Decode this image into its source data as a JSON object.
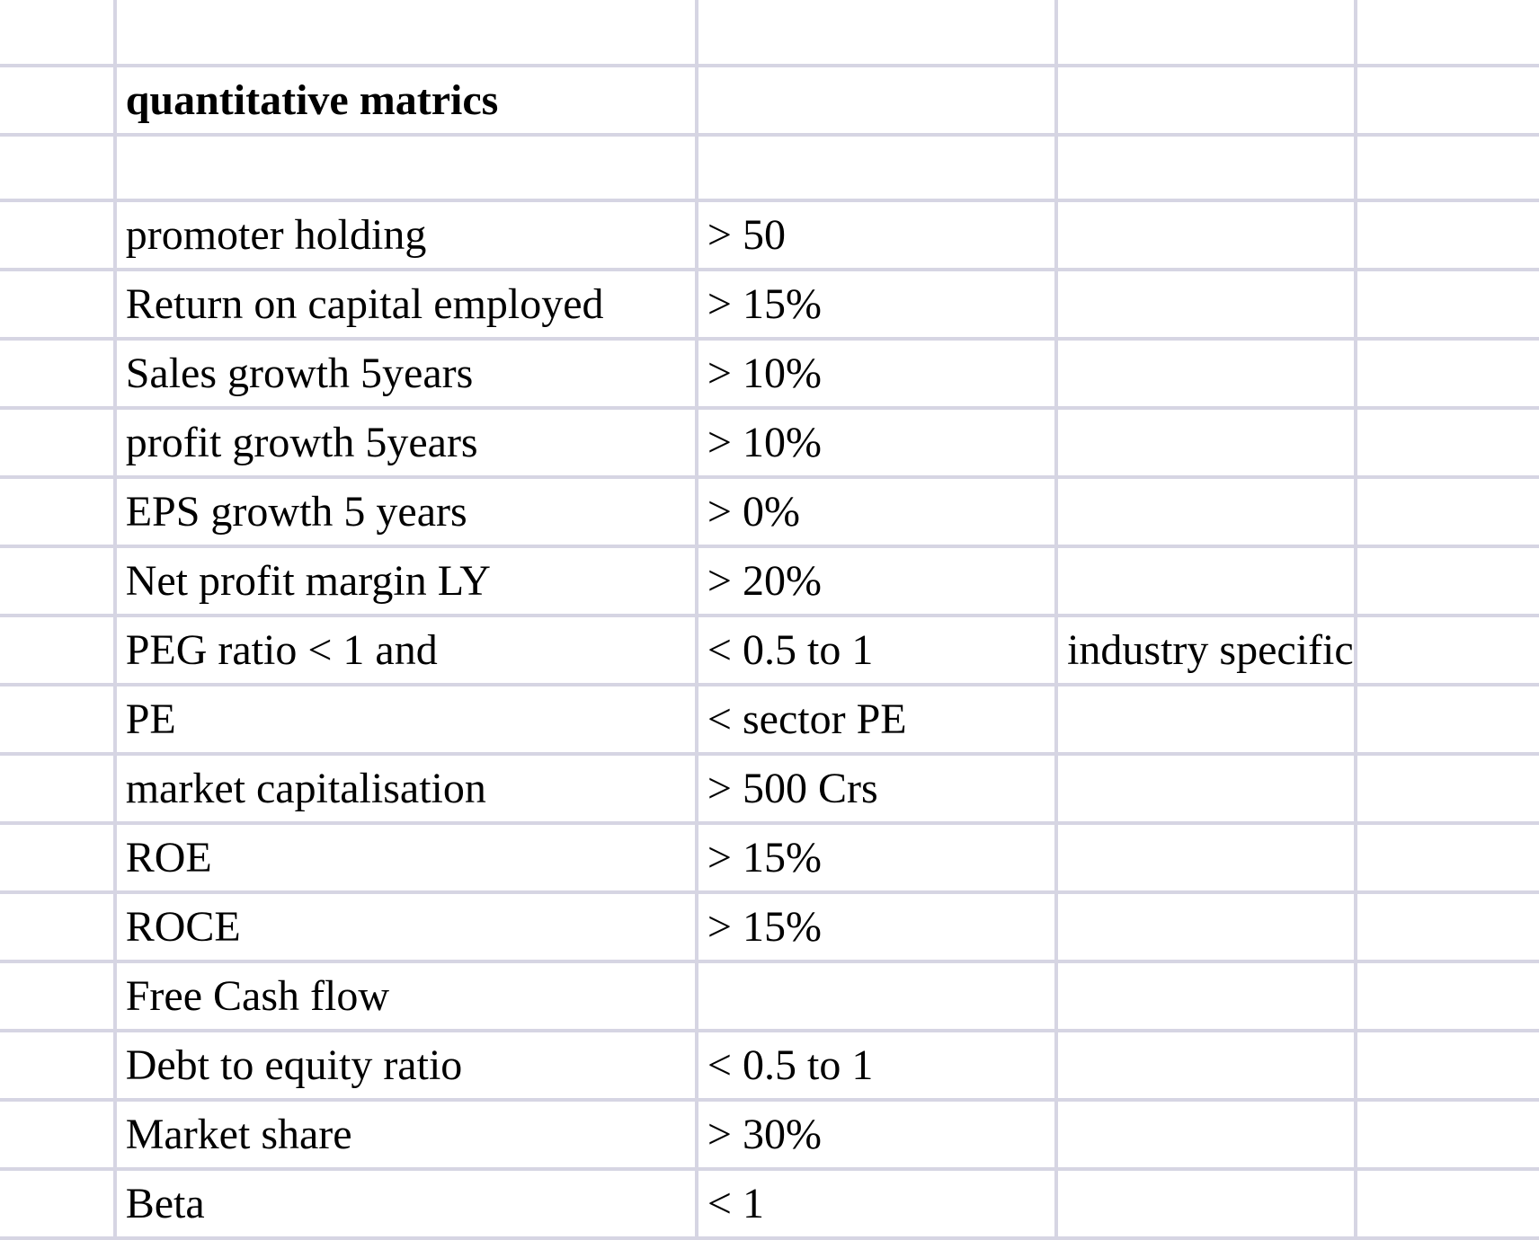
{
  "sheet": {
    "title": "quantitative matrics",
    "rows": [
      {
        "metric": "promoter holding",
        "criteria": "> 50",
        "note": ""
      },
      {
        "metric": "Return on capital employed",
        "criteria": "> 15%",
        "note": ""
      },
      {
        "metric": "Sales growth 5years",
        "criteria": "> 10%",
        "note": ""
      },
      {
        "metric": "profit growth 5years",
        "criteria": "> 10%",
        "note": ""
      },
      {
        "metric": "EPS growth 5 years",
        "criteria": "> 0%",
        "note": ""
      },
      {
        "metric": "Net profit margin LY",
        "criteria": "> 20%",
        "note": ""
      },
      {
        "metric": "PEG ratio < 1 and",
        "criteria": "< 0.5 to 1",
        "note": "industry specific"
      },
      {
        "metric": "PE",
        "criteria": "< sector PE",
        "note": ""
      },
      {
        "metric": "market capitalisation",
        "criteria": "> 500 Crs",
        "note": ""
      },
      {
        "metric": "ROE",
        "criteria": "> 15%",
        "note": ""
      },
      {
        "metric": "ROCE",
        "criteria": "> 15%",
        "note": ""
      },
      {
        "metric": "Free Cash flow",
        "criteria": "",
        "note": ""
      },
      {
        "metric": "Debt to equity ratio",
        "criteria": "< 0.5 to 1",
        "note": ""
      },
      {
        "metric": "Market share",
        "criteria": "> 30%",
        "note": ""
      },
      {
        "metric": "Beta",
        "criteria": "< 1",
        "note": ""
      }
    ]
  }
}
